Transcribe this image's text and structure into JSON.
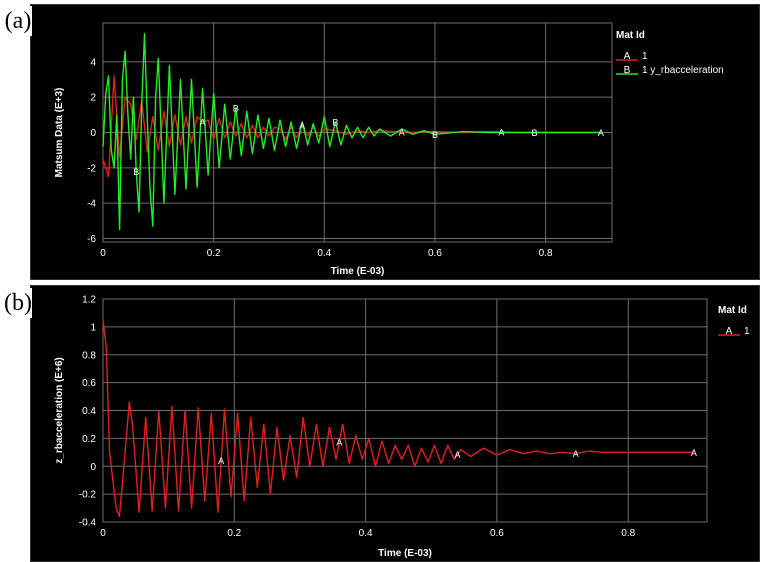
{
  "figure": {
    "panel_a_label": "(a)",
    "panel_b_label": "(b)"
  },
  "colors": {
    "background": "#000000",
    "grid": "#6e6e6e",
    "text": "#ffffff",
    "series_a": "#e02020",
    "series_b": "#22ee22"
  },
  "chart_data": [
    {
      "type": "line",
      "xlabel": "Time (E-03)",
      "ylabel": "Matsum Data (E+3)",
      "xlim": [
        0,
        0.92
      ],
      "ylim": [
        -6.2,
        6.2
      ],
      "xticks": [
        0,
        0.2,
        0.4,
        0.6,
        0.8
      ],
      "xtick_labels": [
        "0",
        "0.2",
        "0.4",
        "0.6",
        "0.8"
      ],
      "yticks": [
        -6,
        -4,
        -2,
        0,
        2,
        4
      ],
      "ytick_labels": [
        "-6",
        "-4",
        "-2",
        "0",
        "2",
        "4"
      ],
      "grid": true,
      "legend_title": "Mat Id",
      "legend_position": "right",
      "series": [
        {
          "name": "1",
          "marker_letter": "A",
          "color": "#e02020",
          "marker_x": [
            0.18,
            0.36,
            0.54,
            0.72,
            0.9
          ],
          "x": [
            0.0,
            0.01,
            0.02,
            0.03,
            0.04,
            0.05,
            0.06,
            0.07,
            0.08,
            0.09,
            0.1,
            0.11,
            0.12,
            0.13,
            0.14,
            0.15,
            0.16,
            0.17,
            0.18,
            0.19,
            0.2,
            0.21,
            0.22,
            0.23,
            0.24,
            0.25,
            0.26,
            0.27,
            0.28,
            0.29,
            0.3,
            0.31,
            0.32,
            0.33,
            0.34,
            0.35,
            0.36,
            0.37,
            0.38,
            0.39,
            0.4,
            0.42,
            0.44,
            0.46,
            0.48,
            0.5,
            0.55,
            0.6,
            0.65,
            0.7,
            0.75,
            0.8,
            0.85,
            0.9
          ],
          "values": [
            -1.5,
            -2.5,
            3.2,
            -1.4,
            2.0,
            1.6,
            -0.4,
            1.8,
            -1.1,
            0.9,
            -1.0,
            1.2,
            -0.8,
            1.0,
            -0.7,
            0.9,
            -0.6,
            0.9,
            0.6,
            0.7,
            -0.4,
            0.8,
            -0.3,
            0.6,
            -0.2,
            0.5,
            -0.3,
            0.4,
            -0.3,
            0.3,
            -0.2,
            0.3,
            0.2,
            -0.4,
            0.3,
            -0.3,
            0.4,
            -0.2,
            0.3,
            -0.2,
            0.2,
            0.1,
            -0.1,
            0.1,
            0.0,
            0.1,
            0.0,
            0.05,
            0.0,
            0.05,
            0.0,
            0.0,
            0.0,
            0.0
          ]
        },
        {
          "name": "1 y_rbacceleration",
          "marker_letter": "B",
          "color": "#22ee22",
          "marker_x": [
            0.06,
            0.24,
            0.42,
            0.6,
            0.78
          ],
          "x": [
            0.0,
            0.005,
            0.01,
            0.015,
            0.02,
            0.025,
            0.03,
            0.035,
            0.04,
            0.045,
            0.05,
            0.055,
            0.06,
            0.065,
            0.07,
            0.075,
            0.08,
            0.085,
            0.09,
            0.095,
            0.1,
            0.11,
            0.12,
            0.13,
            0.14,
            0.15,
            0.16,
            0.17,
            0.18,
            0.19,
            0.2,
            0.21,
            0.22,
            0.23,
            0.24,
            0.25,
            0.26,
            0.27,
            0.28,
            0.29,
            0.3,
            0.31,
            0.32,
            0.33,
            0.34,
            0.35,
            0.36,
            0.37,
            0.38,
            0.39,
            0.4,
            0.41,
            0.42,
            0.43,
            0.44,
            0.45,
            0.46,
            0.47,
            0.48,
            0.49,
            0.5,
            0.52,
            0.54,
            0.56,
            0.58,
            0.6,
            0.65,
            0.7,
            0.75,
            0.8,
            0.85,
            0.9
          ],
          "values": [
            -0.8,
            2.2,
            3.2,
            -1.0,
            -2.0,
            1.0,
            -5.5,
            3.0,
            4.6,
            1.0,
            -1.5,
            2.0,
            -2.2,
            -4.5,
            1.5,
            5.6,
            0.8,
            -3.2,
            -5.3,
            2.0,
            4.2,
            -4.0,
            3.8,
            -3.5,
            3.0,
            -3.2,
            3.0,
            -3.1,
            2.5,
            -2.4,
            2.2,
            -2.0,
            1.6,
            -1.5,
            1.4,
            -1.3,
            1.2,
            -1.2,
            1.0,
            -0.9,
            0.8,
            -1.0,
            0.7,
            -0.8,
            0.6,
            -0.9,
            0.6,
            -0.7,
            0.5,
            -0.6,
            0.9,
            -0.8,
            0.6,
            -0.7,
            0.4,
            -0.3,
            0.3,
            -0.3,
            0.3,
            -0.2,
            0.2,
            -0.2,
            0.2,
            -0.1,
            0.1,
            -0.1,
            0.05,
            0.0,
            0.0,
            0.0,
            0.0,
            0.0
          ]
        }
      ]
    },
    {
      "type": "line",
      "xlabel": "Time (E-03)",
      "ylabel": "z_rbacceleration (E+6)",
      "xlim": [
        0,
        0.92
      ],
      "ylim": [
        -0.4,
        1.2
      ],
      "xticks": [
        0,
        0.2,
        0.4,
        0.6,
        0.8
      ],
      "xtick_labels": [
        "0",
        "0.2",
        "0.4",
        "0.6",
        "0.8"
      ],
      "yticks": [
        -0.4,
        -0.2,
        0,
        0.2,
        0.4,
        0.6,
        0.8,
        1.0,
        1.2
      ],
      "ytick_labels": [
        "-0.4",
        "-0.2",
        "0",
        "0.2",
        "0.4",
        "0.6",
        "0.8",
        "1",
        "1.2"
      ],
      "grid": true,
      "legend_title": "Mat Id",
      "legend_position": "right",
      "series": [
        {
          "name": "1",
          "marker_letter": "A",
          "color": "#e02020",
          "marker_x": [
            0.18,
            0.36,
            0.54,
            0.72,
            0.9
          ],
          "x": [
            0.0,
            0.005,
            0.01,
            0.02,
            0.025,
            0.03,
            0.04,
            0.045,
            0.055,
            0.065,
            0.075,
            0.085,
            0.095,
            0.105,
            0.115,
            0.125,
            0.135,
            0.145,
            0.155,
            0.165,
            0.175,
            0.185,
            0.195,
            0.205,
            0.215,
            0.225,
            0.235,
            0.245,
            0.255,
            0.265,
            0.275,
            0.285,
            0.295,
            0.305,
            0.315,
            0.325,
            0.335,
            0.345,
            0.355,
            0.365,
            0.375,
            0.385,
            0.395,
            0.405,
            0.415,
            0.425,
            0.435,
            0.445,
            0.455,
            0.465,
            0.475,
            0.485,
            0.495,
            0.505,
            0.515,
            0.525,
            0.535,
            0.545,
            0.56,
            0.58,
            0.6,
            0.62,
            0.64,
            0.66,
            0.68,
            0.7,
            0.72,
            0.74,
            0.76,
            0.8,
            0.85,
            0.9
          ],
          "values": [
            1.05,
            0.85,
            0.1,
            -0.3,
            -0.36,
            -0.1,
            0.46,
            0.3,
            -0.33,
            0.35,
            -0.32,
            0.4,
            -0.3,
            0.43,
            -0.32,
            0.4,
            -0.3,
            0.42,
            -0.25,
            0.38,
            -0.33,
            0.41,
            -0.22,
            0.38,
            -0.25,
            0.35,
            -0.15,
            0.3,
            -0.2,
            0.28,
            -0.1,
            0.22,
            -0.08,
            0.35,
            0.0,
            0.3,
            0.0,
            0.28,
            0.05,
            0.3,
            0.02,
            0.22,
            0.05,
            0.2,
            0.0,
            0.18,
            0.02,
            0.15,
            0.05,
            0.15,
            0.0,
            0.13,
            0.03,
            0.15,
            0.02,
            0.15,
            0.05,
            0.12,
            0.07,
            0.13,
            0.08,
            0.12,
            0.09,
            0.11,
            0.09,
            0.1,
            0.09,
            0.11,
            0.1,
            0.1,
            0.1,
            0.1
          ]
        }
      ]
    }
  ]
}
